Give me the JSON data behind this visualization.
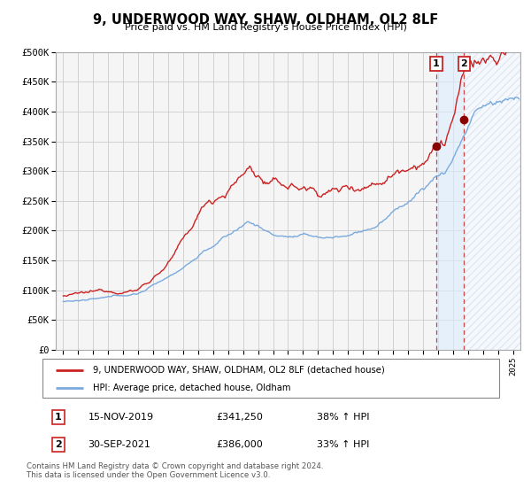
{
  "title": "9, UNDERWOOD WAY, SHAW, OLDHAM, OL2 8LF",
  "subtitle": "Price paid vs. HM Land Registry's House Price Index (HPI)",
  "legend_line1": "9, UNDERWOOD WAY, SHAW, OLDHAM, OL2 8LF (detached house)",
  "legend_line2": "HPI: Average price, detached house, Oldham",
  "sale1_date": "15-NOV-2019",
  "sale1_price": "£341,250",
  "sale1_hpi": "38% ↑ HPI",
  "sale2_date": "30-SEP-2021",
  "sale2_price": "£386,000",
  "sale2_hpi": "33% ↑ HPI",
  "footnote": "Contains HM Land Registry data © Crown copyright and database right 2024.\nThis data is licensed under the Open Government Licence v3.0.",
  "hpi_color": "#7aaadd",
  "price_color": "#cc2222",
  "marker_color": "#880000",
  "sale1_x": 2019.88,
  "sale1_y": 341250,
  "sale2_x": 2021.75,
  "sale2_y": 386000,
  "xlim": [
    1994.5,
    2025.5
  ],
  "ylim": [
    0,
    500000
  ],
  "yticks": [
    0,
    50000,
    100000,
    150000,
    200000,
    250000,
    300000,
    350000,
    400000,
    450000,
    500000
  ],
  "xticks": [
    1995,
    1996,
    1997,
    1998,
    1999,
    2000,
    2001,
    2002,
    2003,
    2004,
    2005,
    2006,
    2007,
    2008,
    2009,
    2010,
    2011,
    2012,
    2013,
    2014,
    2015,
    2016,
    2017,
    2018,
    2019,
    2020,
    2021,
    2022,
    2023,
    2024,
    2025
  ],
  "grid_color": "#cccccc",
  "chart_bg": "#f5f5f5",
  "shade_color": "#ddeeff",
  "hatch_color": "#cccccc"
}
